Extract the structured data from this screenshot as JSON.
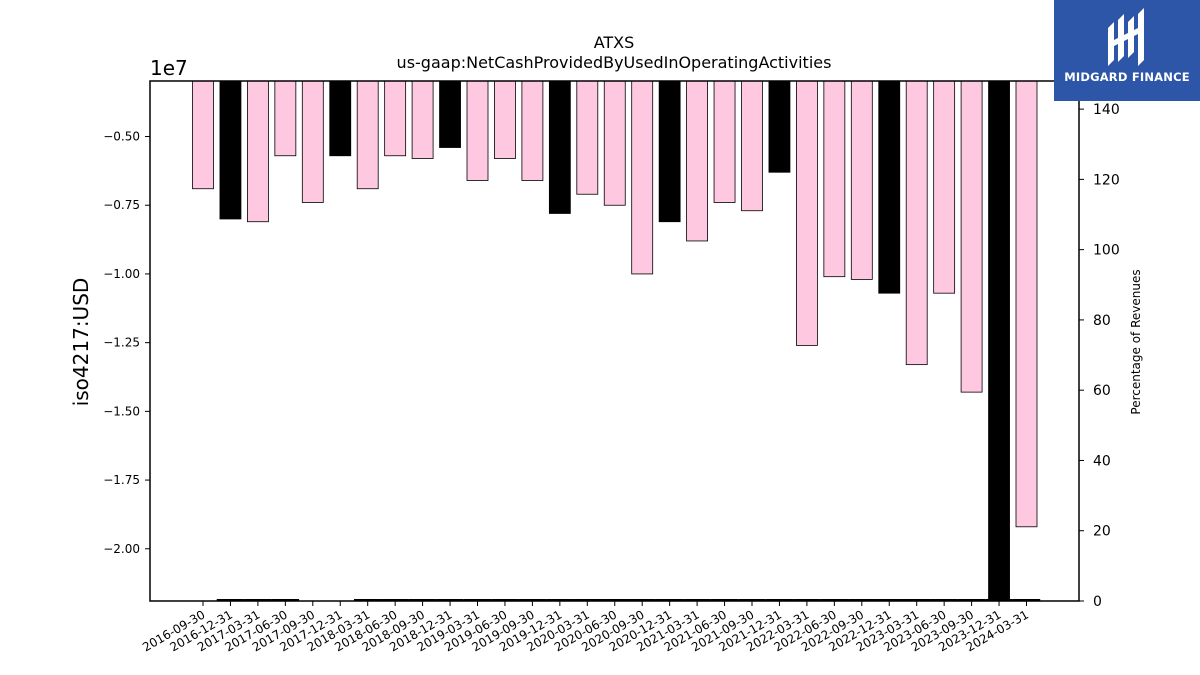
{
  "chart_data": {
    "type": "bar",
    "title": "ATXS",
    "subtitle": "us-gaap:NetCashProvidedByUsedInOperatingActivities",
    "ylabel": "iso4217:USD",
    "y_offset_label": "1e7",
    "y2label": "Percentage of Revenues",
    "ylim": [
      -21900000,
      -2980000
    ],
    "y2lim": [
      0,
      148
    ],
    "yticks": [
      -5000000,
      -7500000,
      -10000000,
      -12500000,
      -15000000,
      -17500000,
      -20000000
    ],
    "ytick_labels": [
      "−0.50",
      "−0.75",
      "−1.00",
      "−1.25",
      "−1.50",
      "−1.75",
      "−2.00"
    ],
    "y2ticks": [
      0,
      20,
      40,
      60,
      80,
      100,
      120,
      140
    ],
    "categories": [
      "2016-09-30",
      "2016-12-31",
      "2017-03-31",
      "2017-06-30",
      "2017-09-30",
      "2017-12-31",
      "2018-03-31",
      "2018-06-30",
      "2018-09-30",
      "2018-12-31",
      "2019-03-31",
      "2019-06-30",
      "2019-09-30",
      "2019-12-31",
      "2020-03-31",
      "2020-06-30",
      "2020-09-30",
      "2020-12-31",
      "2021-03-31",
      "2021-06-30",
      "2021-09-30",
      "2021-12-31",
      "2022-03-31",
      "2022-06-30",
      "2022-09-30",
      "2022-12-31",
      "2023-03-31",
      "2023-06-30",
      "2023-09-30",
      "2023-12-31",
      "2024-03-31"
    ],
    "values": [
      -6900000,
      -8000000,
      -8100000,
      -5700000,
      -7400000,
      -5700000,
      -6900000,
      -5700000,
      -5800000,
      -5400000,
      -6600000,
      -5800000,
      -6600000,
      -7800000,
      -7100000,
      -7500000,
      -10000000,
      -8100000,
      -8800000,
      -7400000,
      -7700000,
      -6300000,
      -12600000,
      -10100000,
      -10200000,
      -10700000,
      -13300000,
      -10700000,
      -14300000,
      -21900000,
      -19200000
    ],
    "percentage_of_revenues": [
      null,
      0.3,
      0.3,
      0.3,
      null,
      null,
      0.3,
      0.3,
      0.3,
      0.3,
      0.3,
      0.3,
      0.3,
      0.3,
      0.3,
      0.3,
      0.3,
      0.3,
      0.3,
      0.3,
      0.3,
      0.3,
      0.3,
      0.3,
      0.3,
      0.3,
      0.3,
      0.3,
      0.3,
      0.3,
      0.3
    ],
    "bar_colors": [
      "#ffc8e1",
      "#000000",
      "#ffc8e1",
      "#ffc8e1",
      "#ffc8e1",
      "#000000",
      "#ffc8e1",
      "#ffc8e1",
      "#ffc8e1",
      "#000000",
      "#ffc8e1",
      "#ffc8e1",
      "#ffc8e1",
      "#000000",
      "#ffc8e1",
      "#ffc8e1",
      "#ffc8e1",
      "#000000",
      "#ffc8e1",
      "#ffc8e1",
      "#ffc8e1",
      "#000000",
      "#ffc8e1",
      "#ffc8e1",
      "#ffc8e1",
      "#000000",
      "#ffc8e1",
      "#ffc8e1",
      "#ffc8e1",
      "#000000",
      "#ffc8e1"
    ],
    "grid": false,
    "legend": "none"
  },
  "logo": {
    "text": "MIDGARD FINANCE",
    "background": "#2d55a8",
    "icon": "midgard-logo-icon"
  }
}
